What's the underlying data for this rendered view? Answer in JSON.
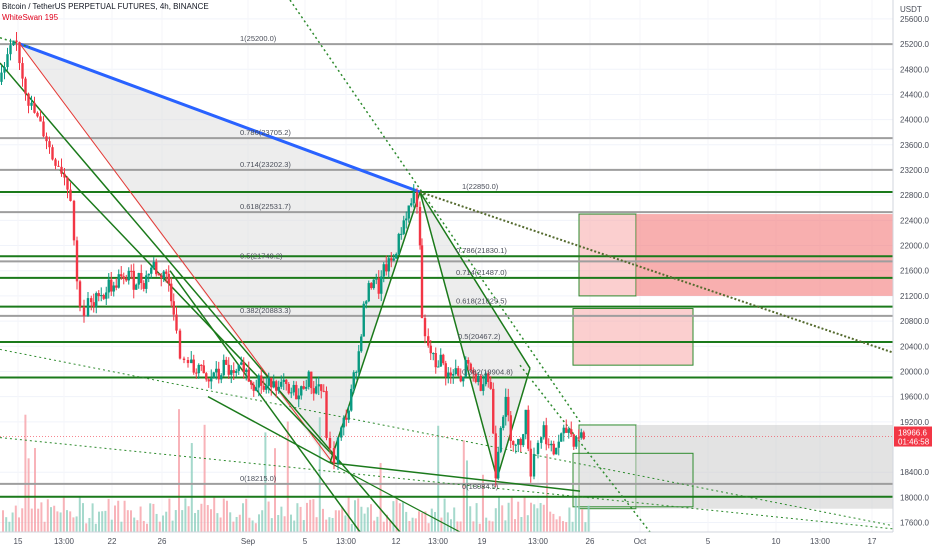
{
  "header": {
    "title": "Bitcoin / TetherUS PERPETUAL FUTURES, 4h, BINANCE",
    "indicator": "WhiteSwan  195",
    "currency": "USDT"
  },
  "last_price": {
    "value": "18966.6",
    "countdown": "01:46:58",
    "color": "#f23645"
  },
  "colors": {
    "up": "#089981",
    "down": "#f23645",
    "trend_blue": "#2962ff",
    "green_line": "#1b7a1b",
    "grey_line": "#9e9e9e",
    "red_zone": "#f7a8a8",
    "grey_zone": "#dcdcdc"
  },
  "chart_data": {
    "type": "candlestick",
    "ylim": [
      17450,
      25900
    ],
    "y_ticks": [
      "25600.0",
      "25200.0",
      "24800.0",
      "24400.0",
      "24000.0",
      "23600.0",
      "23200.0",
      "22800.0",
      "22400.0",
      "22000.0",
      "21600.0",
      "21200.0",
      "20800.0",
      "20400.0",
      "20000.0",
      "19600.0",
      "19200.0",
      "18400.0",
      "18000.0",
      "17600.0"
    ],
    "x_ticks": [
      "15",
      "13:00",
      "22",
      "26",
      "Sep",
      "5",
      "13:00",
      "12",
      "13:00",
      "19",
      "13:00",
      "26",
      "Oct",
      "5",
      "10",
      "13:00",
      "17"
    ],
    "fib_levels_upper": [
      {
        "label": "1(25200.0)",
        "value": 25200
      },
      {
        "label": "0.786(23705.2)",
        "value": 23705.2
      },
      {
        "label": "0.714(23202.3)",
        "value": 23202.3
      },
      {
        "label": "0.618(22531.7)",
        "value": 22531.7
      },
      {
        "label": "0.5(21749.2)",
        "value": 21749.2
      },
      {
        "label": "0.382(20883.3)",
        "value": 20883.3
      },
      {
        "label": "0(18215.0)",
        "value": 18215
      }
    ],
    "fib_levels_lower": [
      {
        "label": "1(22850.0)",
        "value": 22850
      },
      {
        "label": "0.786(21830.1)",
        "value": 21830.1
      },
      {
        "label": "0.714(21487.0)",
        "value": 21487
      },
      {
        "label": "0.618(21029.5)",
        "value": 21029.5
      },
      {
        "label": "0.5(20467.2)",
        "value": 20467.2
      },
      {
        "label": "0.382(19904.8)",
        "value": 19904.8
      },
      {
        "label": "0(18084.5)",
        "value": 18084.5
      }
    ],
    "price_path": [
      [
        0,
        24600
      ],
      [
        6,
        24800
      ],
      [
        12,
        25100
      ],
      [
        18,
        25200
      ],
      [
        24,
        24700
      ],
      [
        30,
        24300
      ],
      [
        36,
        24100
      ],
      [
        42,
        23900
      ],
      [
        48,
        23700
      ],
      [
        54,
        23400
      ],
      [
        60,
        23300
      ],
      [
        66,
        23100
      ],
      [
        72,
        22800
      ],
      [
        76,
        22100
      ],
      [
        78,
        21400
      ],
      [
        82,
        21100
      ],
      [
        86,
        20900
      ],
      [
        90,
        21100
      ],
      [
        95,
        21000
      ],
      [
        100,
        21300
      ],
      [
        105,
        21200
      ],
      [
        110,
        21400
      ],
      [
        115,
        21300
      ],
      [
        120,
        21500
      ],
      [
        125,
        21400
      ],
      [
        130,
        21600
      ],
      [
        135,
        21400
      ],
      [
        140,
        21500
      ],
      [
        145,
        21400
      ],
      [
        150,
        21600
      ],
      [
        155,
        21700
      ],
      [
        160,
        21500
      ],
      [
        165,
        21600
      ],
      [
        170,
        21400
      ],
      [
        175,
        21000
      ],
      [
        178,
        20600
      ],
      [
        182,
        20200
      ],
      [
        186,
        20100
      ],
      [
        190,
        20200
      ],
      [
        195,
        20000
      ],
      [
        200,
        20100
      ],
      [
        205,
        19900
      ],
      [
        210,
        19800
      ],
      [
        215,
        20000
      ],
      [
        220,
        19900
      ],
      [
        225,
        20100
      ],
      [
        230,
        20000
      ],
      [
        235,
        19900
      ],
      [
        240,
        20000
      ],
      [
        245,
        20100
      ],
      [
        250,
        19900
      ],
      [
        255,
        19800
      ],
      [
        260,
        19900
      ],
      [
        265,
        19700
      ],
      [
        270,
        19800
      ],
      [
        275,
        19900
      ],
      [
        280,
        19700
      ],
      [
        285,
        19800
      ],
      [
        290,
        19600
      ],
      [
        295,
        19700
      ],
      [
        300,
        19600
      ],
      [
        305,
        19800
      ],
      [
        310,
        19900
      ],
      [
        315,
        19700
      ],
      [
        320,
        19800
      ],
      [
        325,
        19600
      ],
      [
        328,
        19000
      ],
      [
        332,
        18700
      ],
      [
        336,
        18600
      ],
      [
        340,
        18900
      ],
      [
        345,
        19200
      ],
      [
        350,
        19400
      ],
      [
        355,
        19900
      ],
      [
        360,
        20300
      ],
      [
        365,
        21000
      ],
      [
        370,
        21300
      ],
      [
        375,
        21500
      ],
      [
        380,
        21300
      ],
      [
        385,
        21600
      ],
      [
        390,
        21700
      ],
      [
        395,
        21800
      ],
      [
        400,
        22100
      ],
      [
        405,
        22400
      ],
      [
        410,
        22600
      ],
      [
        415,
        22800
      ],
      [
        419,
        22700
      ],
      [
        421,
        21900
      ],
      [
        423,
        20800
      ],
      [
        427,
        20500
      ],
      [
        432,
        20300
      ],
      [
        437,
        20100
      ],
      [
        442,
        20200
      ],
      [
        447,
        20000
      ],
      [
        452,
        19900
      ],
      [
        457,
        20000
      ],
      [
        462,
        19800
      ],
      [
        467,
        20100
      ],
      [
        472,
        20000
      ],
      [
        477,
        19900
      ],
      [
        482,
        19800
      ],
      [
        487,
        20000
      ],
      [
        492,
        19700
      ],
      [
        497,
        18400
      ],
      [
        502,
        19200
      ],
      [
        507,
        19500
      ],
      [
        512,
        19000
      ],
      [
        517,
        18800
      ],
      [
        522,
        18900
      ],
      [
        527,
        19300
      ],
      [
        532,
        18400
      ],
      [
        536,
        18700
      ],
      [
        540,
        18900
      ],
      [
        545,
        19100
      ],
      [
        550,
        18800
      ],
      [
        555,
        18700
      ],
      [
        560,
        18900
      ],
      [
        565,
        19000
      ],
      [
        570,
        19100
      ],
      [
        575,
        18900
      ],
      [
        580,
        19000
      ],
      [
        585,
        18966.6
      ]
    ]
  }
}
